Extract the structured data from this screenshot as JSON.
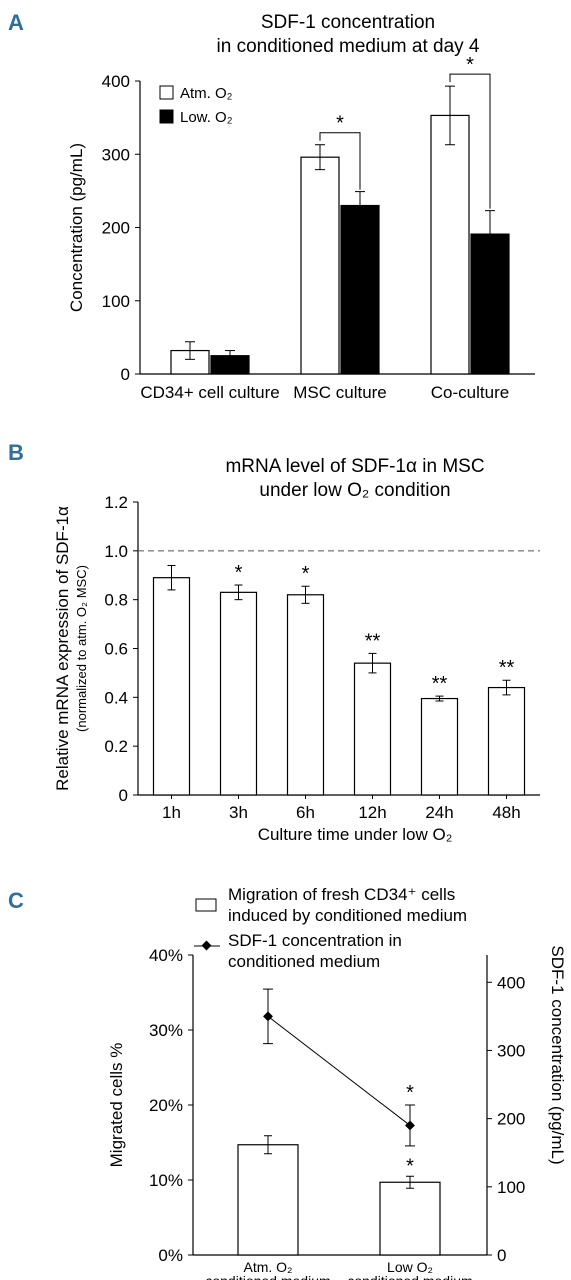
{
  "panels": {
    "a": "A",
    "b": "B",
    "c": "C"
  },
  "chart_data": [
    {
      "type": "bar",
      "panel": "A",
      "title_lines": [
        "SDF-1 concentration",
        "in conditioned medium at day 4"
      ],
      "ylabel": "Concentration (pg/mL)",
      "xlabel": "",
      "ylim": [
        0,
        400
      ],
      "yticks": [
        0,
        100,
        200,
        300,
        400
      ],
      "categories": [
        "CD34+ cell culture",
        "MSC culture",
        "Co-culture"
      ],
      "series": [
        {
          "name": "Atm. O₂",
          "fill": "#ffffff",
          "values": [
            32,
            296,
            353
          ],
          "errors": [
            12,
            17,
            40
          ]
        },
        {
          "name": "Low. O₂",
          "fill": "#000000",
          "values": [
            25,
            230,
            191
          ],
          "errors": [
            7,
            19,
            32
          ]
        }
      ],
      "significance": [
        {
          "category": "MSC culture",
          "label": "*"
        },
        {
          "category": "Co-culture",
          "label": "*"
        }
      ],
      "legend_position": "top-left"
    },
    {
      "type": "bar",
      "panel": "B",
      "title_lines": [
        "mRNA level of SDF-1α in MSC",
        "under low O₂ condition"
      ],
      "ylabel": "Relative mRNA expression of SDF-1α",
      "ylabel_sub": "(normalized to atm. O₂ MSC)",
      "xlabel": "Culture time under low O₂",
      "ylim": [
        0,
        1.2
      ],
      "yticks": [
        "0",
        "0.2",
        "0.4",
        "0.6",
        "0.8",
        "1.0",
        "1.2"
      ],
      "reference_line": 1.0,
      "categories": [
        "1h",
        "3h",
        "6h",
        "12h",
        "24h",
        "48h"
      ],
      "values": [
        0.89,
        0.83,
        0.82,
        0.54,
        0.395,
        0.44
      ],
      "errors": [
        0.05,
        0.03,
        0.035,
        0.04,
        0.01,
        0.03
      ],
      "annotations": [
        "",
        "*",
        "*",
        "**",
        "**",
        "**"
      ],
      "bar_color": "#ffffff"
    },
    {
      "type": "bar",
      "panel": "C",
      "secondary_type": "line",
      "ylabel": "Migrated cells %",
      "y2label": "SDF-1 concentration (pg/mL)",
      "ylim": [
        0,
        40
      ],
      "yticks": [
        "0%",
        "10%",
        "20%",
        "30%",
        "40%"
      ],
      "y2lim": [
        0,
        440
      ],
      "y2ticks": [
        "0",
        "100",
        "200",
        "300",
        "400"
      ],
      "categories": [
        [
          "Atm. O₂",
          "conditioned medium"
        ],
        [
          "Low O₂",
          "conditioned medium"
        ]
      ],
      "series": [
        {
          "name": "Migration of fresh CD34⁺ cells induced by conditioned medium",
          "legend_lines": [
            "Migration of fresh CD34⁺ cells",
            "induced by conditioned medium"
          ],
          "type": "bar",
          "axis": "left",
          "values": [
            14.7,
            9.7
          ],
          "errors": [
            1.2,
            0.8
          ],
          "annotations": [
            "",
            "*"
          ]
        },
        {
          "name": "SDF-1 concentration in conditioned medium",
          "legend_lines": [
            "SDF-1 concentration in",
            "conditioned medium"
          ],
          "type": "line",
          "axis": "right",
          "values": [
            350,
            190
          ],
          "errors": [
            40,
            30
          ],
          "annotations": [
            "",
            "*"
          ]
        }
      ],
      "legend_position": "top"
    }
  ]
}
